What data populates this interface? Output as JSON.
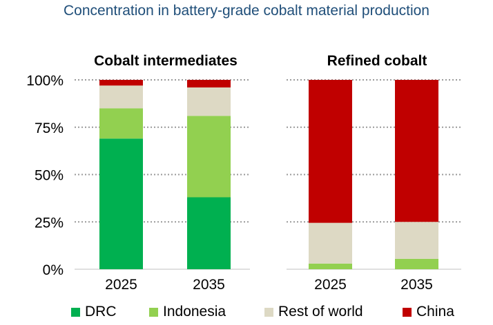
{
  "chart_data": {
    "type": "bar",
    "stacked": true,
    "title": "Concentration in battery-grade cobalt material production",
    "y_ticks": [
      "0%",
      "25%",
      "50%",
      "75%",
      "100%"
    ],
    "ylim": [
      0,
      100
    ],
    "grid": "dotted horizontal",
    "legend_position": "bottom",
    "series": [
      {
        "name": "DRC",
        "color": "#00b050"
      },
      {
        "name": "Indonesia",
        "color": "#92d050"
      },
      {
        "name": "Rest of world",
        "color": "#ddd9c4"
      },
      {
        "name": "China",
        "color": "#c00000"
      }
    ],
    "panels": [
      {
        "title": "Cobalt intermediates",
        "categories": [
          "2025",
          "2035"
        ],
        "values": {
          "DRC": [
            69,
            38
          ],
          "Indonesia": [
            16,
            43
          ],
          "Rest of world": [
            12,
            15
          ],
          "China": [
            3,
            4
          ]
        }
      },
      {
        "title": "Refined cobalt",
        "categories": [
          "2025",
          "2035"
        ],
        "values": {
          "DRC": [
            0,
            0
          ],
          "Indonesia": [
            3,
            5.5
          ],
          "Rest of world": [
            21.5,
            19.5
          ],
          "China": [
            75.5,
            75
          ]
        }
      }
    ]
  }
}
